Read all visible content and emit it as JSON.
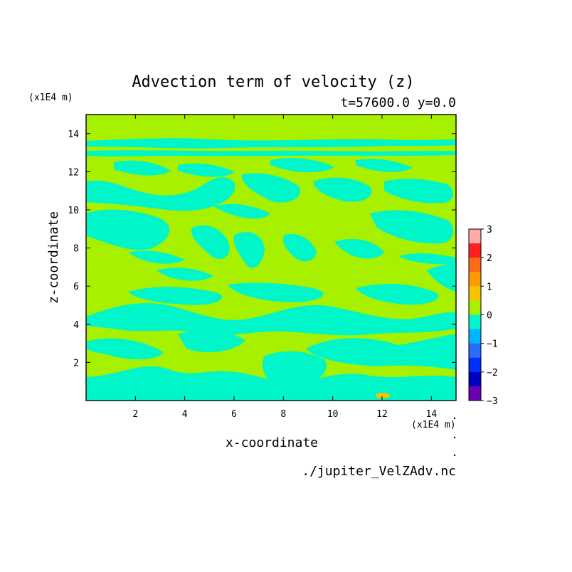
{
  "chart_data": {
    "type": "heatmap",
    "title": "Advection term of velocity (z)",
    "subtitle": "t=57600.0 y=0.0",
    "xlabel": "x-coordinate",
    "ylabel": "z-coordinate",
    "x_unit_label": "(x1E4 m)",
    "y_unit_label": "(x1E4 m)",
    "source_label": "./jupiter_VelZAdv.nc",
    "xlim": [
      0,
      15
    ],
    "ylim": [
      0,
      15
    ],
    "x_ticks": [
      2,
      4,
      6,
      8,
      10,
      12,
      14
    ],
    "y_ticks": [
      2,
      4,
      6,
      8,
      10,
      12,
      14
    ],
    "field_levels_present": [
      -1,
      0,
      1
    ],
    "background_level_color": "#a6f000",
    "negative_region_color": "#00f6c8",
    "positive_region_color": "#a6f000",
    "colorbar": {
      "tick_labels": [
        "3",
        "2",
        "1",
        "0",
        "−1",
        "−2",
        "−3"
      ],
      "min": -3,
      "max": 3,
      "colors": [
        "#ffaaaa",
        "#ff2020",
        "#ff6a1a",
        "#ff9a00",
        "#f5c400",
        "#a6f000",
        "#00f6c8",
        "#00b4ff",
        "#2a6cff",
        "#0030ff",
        "#0000c0",
        "#6a00b0"
      ]
    }
  }
}
